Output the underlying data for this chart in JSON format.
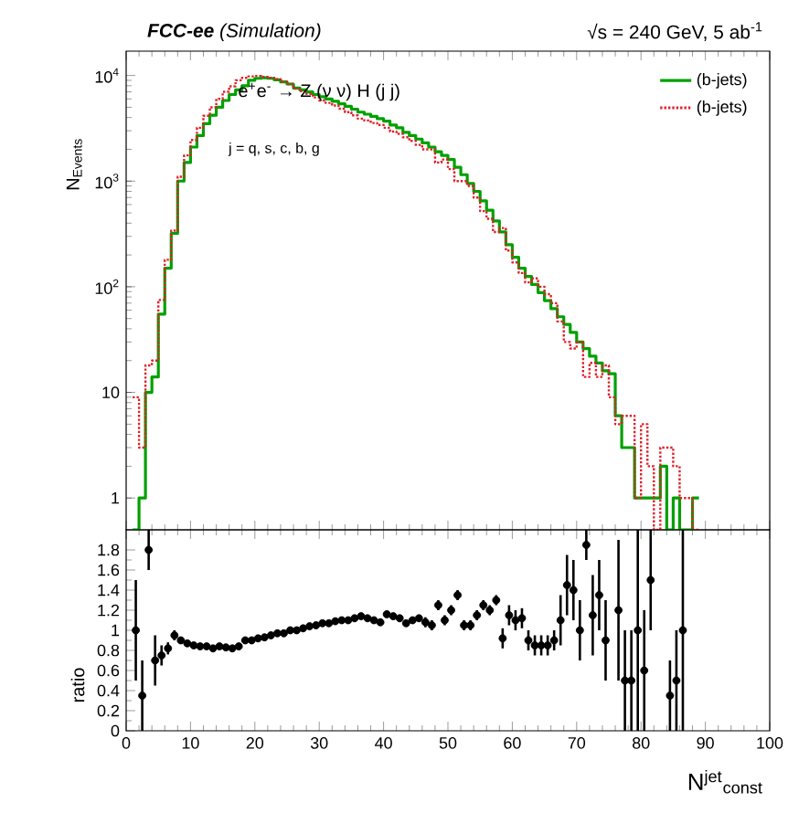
{
  "chart_data": [
    {
      "type": "histogram",
      "title": "**FCC-ee**  (Simulation)",
      "subtitle": "√s = 240 GeV, 5 ab$^{-1}$",
      "ylabel": "N$_{Events}$",
      "annotations": [
        "e$^{+}$e$^{-}$ → Z (ν ν) H (j j)",
        "j = q, s, c, b, g"
      ],
      "bins": [
        1,
        2,
        3,
        4,
        5,
        6,
        7,
        8,
        9,
        10,
        11,
        12,
        13,
        14,
        15,
        16,
        17,
        18,
        19,
        20,
        21,
        22,
        23,
        24,
        25,
        26,
        27,
        28,
        29,
        30,
        31,
        32,
        33,
        34,
        35,
        36,
        37,
        38,
        39,
        40,
        41,
        42,
        43,
        44,
        45,
        46,
        47,
        48,
        49,
        50,
        51,
        52,
        53,
        54,
        55,
        56,
        57,
        58,
        59,
        60,
        61,
        62,
        63,
        64,
        65,
        66,
        67,
        68,
        69,
        70,
        71,
        72,
        73,
        74,
        75,
        76,
        77,
        78,
        79,
        80,
        81,
        82,
        83,
        84,
        85,
        86,
        87,
        88,
        89
      ],
      "series": [
        {
          "name": "(b-jets)",
          "color": "#00a000",
          "line_style": "solid",
          "values": [
            null,
            1,
            10,
            14,
            55,
            150,
            320,
            1000,
            1500,
            2100,
            2700,
            3500,
            4200,
            5000,
            5800,
            6600,
            7300,
            8000,
            9000,
            9400,
            9500,
            9400,
            9100,
            8700,
            8300,
            7600,
            7300,
            7000,
            6600,
            6300,
            6000,
            5700,
            5400,
            5100,
            4800,
            4500,
            4300,
            4100,
            3900,
            3700,
            3400,
            3200,
            2900,
            2700,
            2500,
            2300,
            2100,
            1900,
            1750,
            1600,
            1350,
            1150,
            950,
            800,
            650,
            530,
            420,
            330,
            250,
            190,
            150,
            125,
            105,
            88,
            74,
            62,
            52,
            44,
            37,
            30,
            26,
            22,
            19,
            16,
            15,
            6,
            3,
            3,
            1,
            1,
            1,
            1,
            2,
            null,
            1,
            null,
            null,
            1
          ]
        },
        {
          "name": "(b-jets)",
          "color": "#e0202a",
          "line_style": "dotted",
          "values": [
            9,
            3,
            18,
            20,
            75,
            180,
            340,
            1100,
            1750,
            2450,
            3200,
            4150,
            5000,
            6000,
            7000,
            7900,
            9000,
            9500,
            9800,
            9900,
            9700,
            9500,
            9200,
            8700,
            8300,
            7500,
            7100,
            6700,
            6200,
            5800,
            5500,
            5200,
            4850,
            4500,
            4200,
            3900,
            3750,
            3550,
            3400,
            3200,
            2950,
            2800,
            2600,
            2400,
            2200,
            2000,
            2000,
            1500,
            1600,
            1300,
            1000,
            1000,
            900,
            700,
            520,
            440,
            330,
            360,
            220,
            170,
            135,
            110,
            120,
            100,
            85,
            70,
            47,
            30,
            26,
            30,
            14,
            19,
            14,
            18,
            9,
            5,
            6,
            6,
            1,
            5,
            2,
            null,
            3,
            3,
            2,
            1,
            1,
            null
          ]
        }
      ],
      "xlim": [
        0,
        100
      ],
      "ylim": [
        0.5,
        17000
      ],
      "log": "y",
      "xticks": [
        0,
        10,
        20,
        30,
        40,
        50,
        60,
        70,
        80,
        90,
        100
      ],
      "yticks": [
        1,
        10,
        {
          "value": 100,
          "label": "10$^{2}$"
        },
        {
          "value": 1000,
          "label": "10$^{3}$"
        },
        {
          "value": 10000,
          "label": "10$^{4}$"
        }
      ],
      "tick_labels": "y",
      "legend": "top right"
    },
    {
      "type": "scatter",
      "ylabel": "ratio",
      "xlabel": "N$^{jet}$$_{const}$",
      "color": "#000000",
      "marker": "circle",
      "x": [
        1.5,
        2.5,
        3.5,
        4.5,
        5.5,
        6.5,
        7.5,
        8.5,
        9.5,
        10.5,
        11.5,
        12.5,
        13.5,
        14.5,
        15.5,
        16.5,
        17.5,
        18.5,
        19.5,
        20.5,
        21.5,
        22.5,
        23.5,
        24.5,
        25.5,
        26.5,
        27.5,
        28.5,
        29.5,
        30.5,
        31.5,
        32.5,
        33.5,
        34.5,
        35.5,
        36.5,
        37.5,
        38.5,
        39.5,
        40.5,
        41.5,
        42.5,
        43.5,
        44.5,
        45.5,
        46.5,
        47.5,
        48.5,
        49.5,
        50.5,
        51.5,
        52.5,
        53.5,
        54.5,
        55.5,
        56.5,
        57.5,
        58.5,
        59.5,
        60.5,
        61.5,
        62.5,
        63.5,
        64.5,
        65.5,
        66.5,
        67.5,
        68.5,
        69.5,
        70.5,
        71.5,
        72.5,
        73.5,
        74.5,
        76.5,
        77.5,
        78.5,
        79.5,
        80.5,
        81.5,
        84.5,
        85.5,
        86.5
      ],
      "values": [
        1.0,
        0.35,
        1.8,
        0.7,
        0.75,
        0.82,
        0.95,
        0.9,
        0.87,
        0.85,
        0.84,
        0.84,
        0.82,
        0.84,
        0.83,
        0.82,
        0.84,
        0.9,
        0.9,
        0.92,
        0.93,
        0.95,
        0.97,
        0.97,
        1.0,
        1.0,
        1.02,
        1.04,
        1.05,
        1.07,
        1.07,
        1.09,
        1.1,
        1.1,
        1.12,
        1.14,
        1.12,
        1.1,
        1.08,
        1.16,
        1.14,
        1.12,
        1.07,
        1.1,
        1.12,
        1.08,
        1.05,
        1.25,
        1.1,
        1.2,
        1.35,
        1.05,
        1.05,
        1.15,
        1.25,
        1.2,
        1.3,
        0.92,
        1.15,
        1.1,
        1.12,
        0.9,
        0.85,
        0.85,
        0.85,
        0.9,
        1.1,
        1.45,
        1.4,
        1.0,
        1.85,
        1.15,
        1.35,
        0.9,
        1.2,
        0.5,
        0.5,
        1.0,
        0.6,
        1.5,
        0.35,
        0.5,
        1.0
      ],
      "errors": [
        0.5,
        0.35,
        0.2,
        0.25,
        0.1,
        0.06,
        0.05,
        0.03,
        0.02,
        0.02,
        0.02,
        0.02,
        0.02,
        0.02,
        0.02,
        0.02,
        0.02,
        0.02,
        0.02,
        0.02,
        0.02,
        0.02,
        0.02,
        0.02,
        0.02,
        0.02,
        0.02,
        0.02,
        0.02,
        0.02,
        0.02,
        0.02,
        0.02,
        0.02,
        0.02,
        0.02,
        0.02,
        0.02,
        0.02,
        0.02,
        0.02,
        0.02,
        0.02,
        0.02,
        0.02,
        0.05,
        0.05,
        0.05,
        0.05,
        0.05,
        0.05,
        0.05,
        0.05,
        0.05,
        0.05,
        0.05,
        0.05,
        0.1,
        0.1,
        0.1,
        0.1,
        0.1,
        0.1,
        0.1,
        0.1,
        0.1,
        0.25,
        0.3,
        0.3,
        0.3,
        0.15,
        0.4,
        0.35,
        0.4,
        0.7,
        0.5,
        0.5,
        1.0,
        0.6,
        0.5,
        0.35,
        0.5,
        1.0
      ],
      "xlim": [
        0,
        100
      ],
      "ylim": [
        0,
        2
      ],
      "xticks": [
        0,
        10,
        20,
        30,
        40,
        50,
        60,
        70,
        80,
        90,
        100
      ],
      "yticks": [
        0,
        0.2,
        0.4,
        0.6,
        0.8,
        1,
        1.2,
        1.4,
        1.6,
        1.8
      ]
    }
  ]
}
